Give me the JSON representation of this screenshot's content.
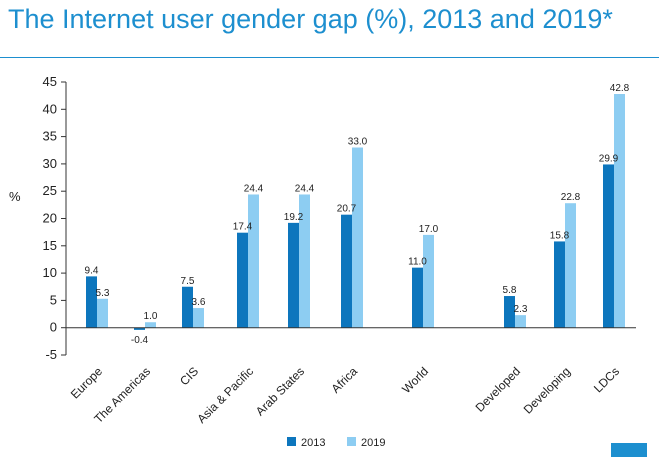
{
  "title": "The Internet user gender gap (%), 2013 and 2019*",
  "chart_data": {
    "type": "bar",
    "title": "The Internet user gender gap (%), 2013 and 2019*",
    "xlabel": "",
    "ylabel": "%",
    "ylim": [
      -5,
      45
    ],
    "yticks": [
      -5,
      0,
      5,
      10,
      15,
      20,
      25,
      30,
      35,
      40,
      45
    ],
    "grid": false,
    "legend": "bottom",
    "categories": [
      "Europe",
      "The Americas",
      "CIS",
      "Asia & Pacific",
      "Arab States",
      "Africa",
      "World",
      "Developed",
      "Developing",
      "LDCs"
    ],
    "series": [
      {
        "name": "2013",
        "color": "#0d76bd",
        "values": [
          9.4,
          -0.4,
          7.5,
          17.4,
          19.2,
          20.7,
          11.0,
          5.8,
          15.8,
          29.9
        ]
      },
      {
        "name": "2019",
        "color": "#8dcdf2",
        "values": [
          5.3,
          1.0,
          3.6,
          24.4,
          24.4,
          33.0,
          17.0,
          2.3,
          22.8,
          42.8
        ]
      }
    ]
  }
}
